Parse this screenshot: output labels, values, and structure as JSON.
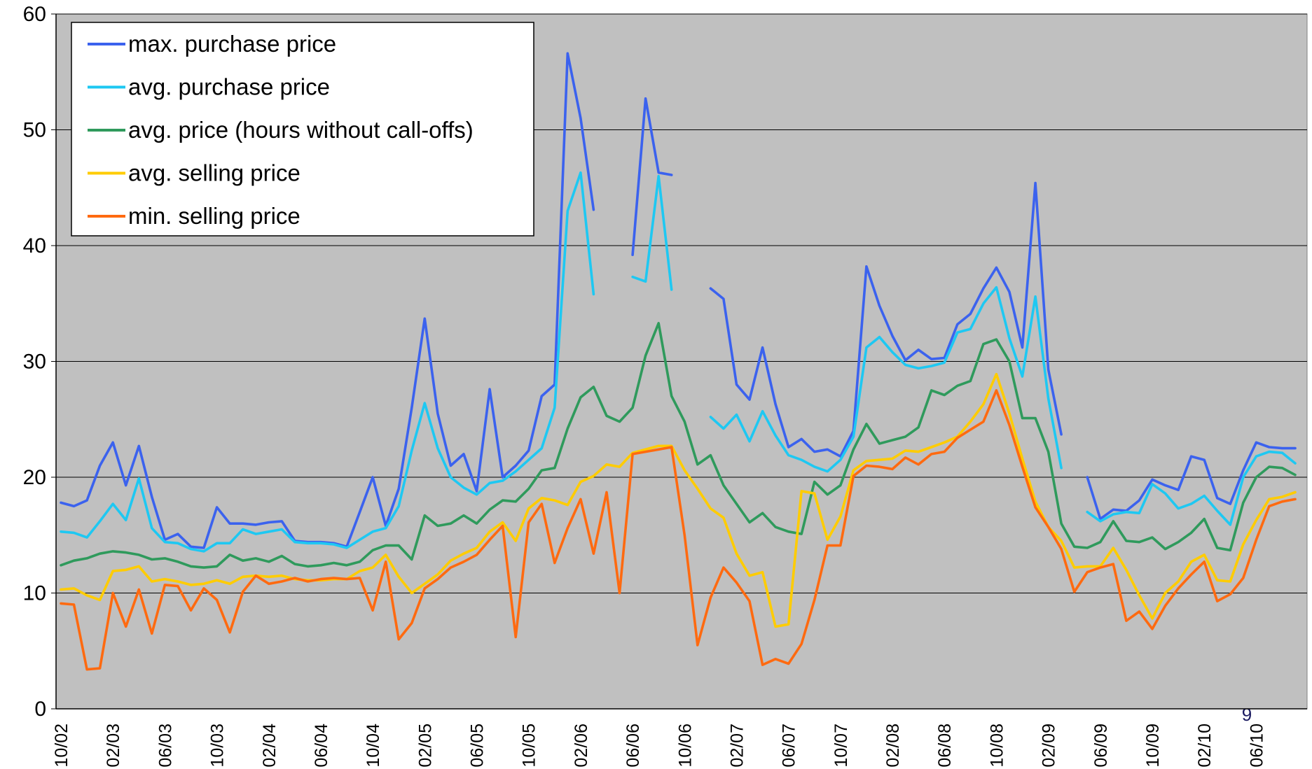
{
  "chart_data": {
    "type": "line",
    "categories": [
      "10/02",
      null,
      null,
      null,
      "02/03",
      null,
      null,
      null,
      "06/03",
      null,
      null,
      null,
      "10/03",
      null,
      null,
      null,
      "02/04",
      null,
      null,
      null,
      "06/04",
      null,
      null,
      null,
      "10/04",
      null,
      null,
      null,
      "02/05",
      null,
      null,
      null,
      "06/05",
      null,
      null,
      null,
      "10/05",
      null,
      null,
      null,
      "02/06",
      null,
      null,
      null,
      "06/06",
      null,
      null,
      null,
      "10/06",
      null,
      null,
      null,
      "02/07",
      null,
      null,
      null,
      "06/07",
      null,
      null,
      null,
      "10/07",
      null,
      null,
      null,
      "02/08",
      null,
      null,
      null,
      "06/08",
      null,
      null,
      null,
      "10/08",
      null,
      null,
      null,
      "02/09",
      null,
      null,
      null,
      "06/09",
      null,
      null,
      null,
      "10/09",
      null,
      null,
      null,
      "02/10",
      null,
      null,
      null,
      "06/10",
      null,
      null,
      null
    ],
    "series": [
      {
        "name": "max. purchase price",
        "color": "#3b62ee",
        "values": [
          17.8,
          17.5,
          18.0,
          21.0,
          23.0,
          19.3,
          22.7,
          18.3,
          14.6,
          15.1,
          14.0,
          13.9,
          17.4,
          16.0,
          16.0,
          15.9,
          16.1,
          16.2,
          14.5,
          14.4,
          14.4,
          14.3,
          14.0,
          17.0,
          20.0,
          15.8,
          19.0,
          26.0,
          33.7,
          25.5,
          21.0,
          22.0,
          18.8,
          27.6,
          20.0,
          21.0,
          22.3,
          27.0,
          28.0,
          56.6,
          51.0,
          43.1,
          null,
          null,
          39.2,
          52.7,
          46.3,
          46.1,
          null,
          null,
          36.3,
          35.4,
          28.0,
          26.7,
          31.2,
          26.3,
          22.6,
          23.3,
          22.2,
          22.4,
          21.8,
          24.0,
          38.2,
          34.8,
          32.2,
          30.1,
          31.0,
          30.2,
          30.3,
          33.2,
          34.1,
          36.3,
          38.1,
          36.0,
          31.2,
          45.4,
          29.3,
          23.7,
          null,
          20.0,
          16.4,
          17.2,
          17.1,
          18.0,
          19.8,
          19.3,
          18.9,
          21.8,
          21.5,
          18.2,
          17.7,
          20.6,
          23.0,
          22.6,
          22.5,
          22.5
        ]
      },
      {
        "name": "avg. purchase price",
        "color": "#1ec8f2",
        "values": [
          15.3,
          15.2,
          14.8,
          16.2,
          17.7,
          16.3,
          19.9,
          15.6,
          14.4,
          14.3,
          13.8,
          13.6,
          14.3,
          14.3,
          15.5,
          15.1,
          15.3,
          15.5,
          14.4,
          14.3,
          14.3,
          14.2,
          13.9,
          14.6,
          15.3,
          15.6,
          17.5,
          22.3,
          26.4,
          22.5,
          20.0,
          19.1,
          18.5,
          19.5,
          19.7,
          20.5,
          21.5,
          22.5,
          26.0,
          43.0,
          46.3,
          35.8,
          null,
          null,
          37.3,
          36.9,
          46.0,
          36.2,
          null,
          null,
          25.2,
          24.2,
          25.4,
          23.1,
          25.7,
          23.6,
          21.9,
          21.5,
          20.9,
          20.5,
          21.5,
          23.5,
          31.2,
          32.1,
          30.8,
          29.7,
          29.4,
          29.6,
          29.9,
          32.5,
          32.8,
          35.0,
          36.4,
          32.0,
          28.7,
          35.6,
          26.8,
          20.8,
          null,
          17.0,
          16.2,
          16.8,
          17.0,
          16.9,
          19.4,
          18.6,
          17.3,
          17.7,
          18.4,
          17.1,
          15.9,
          20.0,
          21.8,
          22.2,
          22.1,
          21.2
        ]
      },
      {
        "name": "avg. price (hours without call-offs)",
        "color": "#2f9a5c",
        "values": [
          12.4,
          12.8,
          13.0,
          13.4,
          13.6,
          13.5,
          13.3,
          12.9,
          13.0,
          12.7,
          12.3,
          12.2,
          12.3,
          13.3,
          12.8,
          13.0,
          12.7,
          13.2,
          12.5,
          12.3,
          12.4,
          12.6,
          12.4,
          12.7,
          13.7,
          14.1,
          14.1,
          12.9,
          16.7,
          15.8,
          16.0,
          16.7,
          16.0,
          17.2,
          18.0,
          17.9,
          19.0,
          20.6,
          20.8,
          24.2,
          26.9,
          27.8,
          25.3,
          24.8,
          26.0,
          30.5,
          33.3,
          27.0,
          24.8,
          21.1,
          21.9,
          19.3,
          17.7,
          16.1,
          16.9,
          15.7,
          15.3,
          15.1,
          19.6,
          18.5,
          19.3,
          22.4,
          24.6,
          22.9,
          23.2,
          23.5,
          24.3,
          27.5,
          27.1,
          27.9,
          28.3,
          31.5,
          31.9,
          30.0,
          25.1,
          25.1,
          22.2,
          16.0,
          14.0,
          13.9,
          14.4,
          16.2,
          14.5,
          14.4,
          14.8,
          13.8,
          14.4,
          15.2,
          16.4,
          13.9,
          13.7,
          17.8,
          20.0,
          20.9,
          20.8,
          20.2
        ]
      },
      {
        "name": "avg. selling price",
        "color": "#ffcc00",
        "values": [
          10.3,
          10.4,
          9.8,
          9.4,
          11.9,
          12.0,
          12.3,
          11.0,
          11.2,
          11.0,
          10.7,
          10.8,
          11.1,
          10.8,
          11.4,
          11.5,
          11.4,
          11.5,
          11.2,
          11.1,
          11.1,
          11.2,
          11.2,
          11.9,
          12.2,
          13.3,
          11.4,
          10.0,
          10.8,
          11.6,
          12.8,
          13.4,
          13.9,
          15.3,
          16.1,
          14.5,
          17.3,
          18.2,
          18.0,
          17.6,
          19.6,
          20.1,
          21.1,
          20.9,
          22.1,
          22.4,
          22.7,
          22.7,
          20.6,
          19.0,
          17.3,
          16.5,
          13.4,
          11.5,
          11.8,
          7.1,
          7.3,
          18.8,
          18.6,
          14.6,
          16.6,
          20.6,
          21.4,
          21.5,
          21.6,
          22.3,
          22.2,
          22.6,
          23.0,
          23.5,
          24.8,
          26.3,
          28.9,
          25.5,
          21.6,
          17.9,
          15.7,
          14.5,
          12.2,
          12.3,
          12.3,
          13.9,
          12.0,
          9.8,
          7.8,
          10.0,
          11.0,
          12.7,
          13.3,
          11.1,
          11.0,
          14.2,
          16.3,
          18.1,
          18.3,
          18.7
        ]
      },
      {
        "name": "min. selling price",
        "color": "#ff6a10",
        "values": [
          9.1,
          9.0,
          3.4,
          3.5,
          10.0,
          7.1,
          10.3,
          6.5,
          10.7,
          10.6,
          8.5,
          10.4,
          9.4,
          6.6,
          10.1,
          11.5,
          10.8,
          11.0,
          11.3,
          11.0,
          11.2,
          11.3,
          11.2,
          11.3,
          8.5,
          12.7,
          6.0,
          7.4,
          10.4,
          11.2,
          12.2,
          12.7,
          13.3,
          14.6,
          15.8,
          6.2,
          16.1,
          17.7,
          12.6,
          15.6,
          18.1,
          13.4,
          18.7,
          10.0,
          22.0,
          22.2,
          22.4,
          22.6,
          15.0,
          5.5,
          9.6,
          12.2,
          10.9,
          9.3,
          3.8,
          4.3,
          3.9,
          5.6,
          9.4,
          14.1,
          14.1,
          20.1,
          21.0,
          20.9,
          20.7,
          21.7,
          21.1,
          22.0,
          22.2,
          23.4,
          24.1,
          24.8,
          27.5,
          24.5,
          20.9,
          17.4,
          15.7,
          13.8,
          10.1,
          11.8,
          12.2,
          12.5,
          7.6,
          8.4,
          6.9,
          8.9,
          10.4,
          11.6,
          12.7,
          9.3,
          9.9,
          11.3,
          14.6,
          17.5,
          17.9,
          18.1
        ]
      }
    ],
    "ylim": [
      0,
      60
    ],
    "yticks": [
      0,
      10,
      20,
      30,
      40,
      50,
      60
    ],
    "grid": true,
    "legend": "upper left",
    "background": "#c0c0c0",
    "page_number": "9"
  }
}
